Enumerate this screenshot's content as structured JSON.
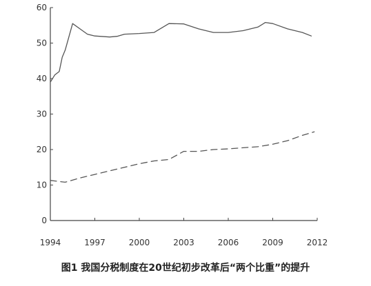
{
  "caption": "图1 我国分税制度在20世纪初步改革后“两个比重”的提升",
  "chart_data": {
    "type": "line",
    "title": "",
    "xlabel": "",
    "ylabel": "",
    "xlim": [
      1994,
      2012
    ],
    "ylim": [
      0,
      60
    ],
    "xticks": [
      "1994",
      "1997",
      "2000",
      "2003",
      "2006",
      "2009",
      "2012"
    ],
    "yticks": [
      "0",
      "10",
      "20",
      "30",
      "40",
      "50",
      "60"
    ],
    "grid": false,
    "legend": "none",
    "series": [
      {
        "style": "solid",
        "x": [
          1994.0,
          1994.3,
          1994.6,
          1994.8,
          1995.0,
          1995.2,
          1995.5,
          1996.0,
          1996.5,
          1997.0,
          1998.0,
          1998.5,
          1999.0,
          2000.0,
          2001.0,
          2002.0,
          2003.0,
          2004.0,
          2005.0,
          2006.0,
          2007.0,
          2008.0,
          2008.5,
          2009.0,
          2010.0,
          2011.0,
          2011.6
        ],
        "y": [
          39.0,
          41.0,
          42.0,
          46.0,
          48.0,
          51.0,
          55.5,
          54.0,
          52.5,
          52.0,
          51.7,
          51.9,
          52.5,
          52.7,
          53.0,
          55.5,
          55.4,
          54.0,
          53.0,
          53.0,
          53.5,
          54.5,
          55.8,
          55.5,
          54.0,
          53.0,
          52.0
        ]
      },
      {
        "style": "dashed",
        "x": [
          1994.0,
          1995.0,
          1996.0,
          1997.0,
          1998.0,
          1999.0,
          2000.0,
          2001.0,
          2002.0,
          2003.0,
          2004.0,
          2005.0,
          2006.0,
          2007.0,
          2008.0,
          2009.0,
          2010.0,
          2011.0,
          2011.8
        ],
        "y": [
          11.3,
          10.8,
          12.0,
          13.0,
          14.0,
          15.0,
          16.0,
          16.8,
          17.2,
          19.5,
          19.5,
          20.0,
          20.2,
          20.5,
          20.8,
          21.5,
          22.5,
          24.0,
          25.0
        ]
      }
    ]
  }
}
